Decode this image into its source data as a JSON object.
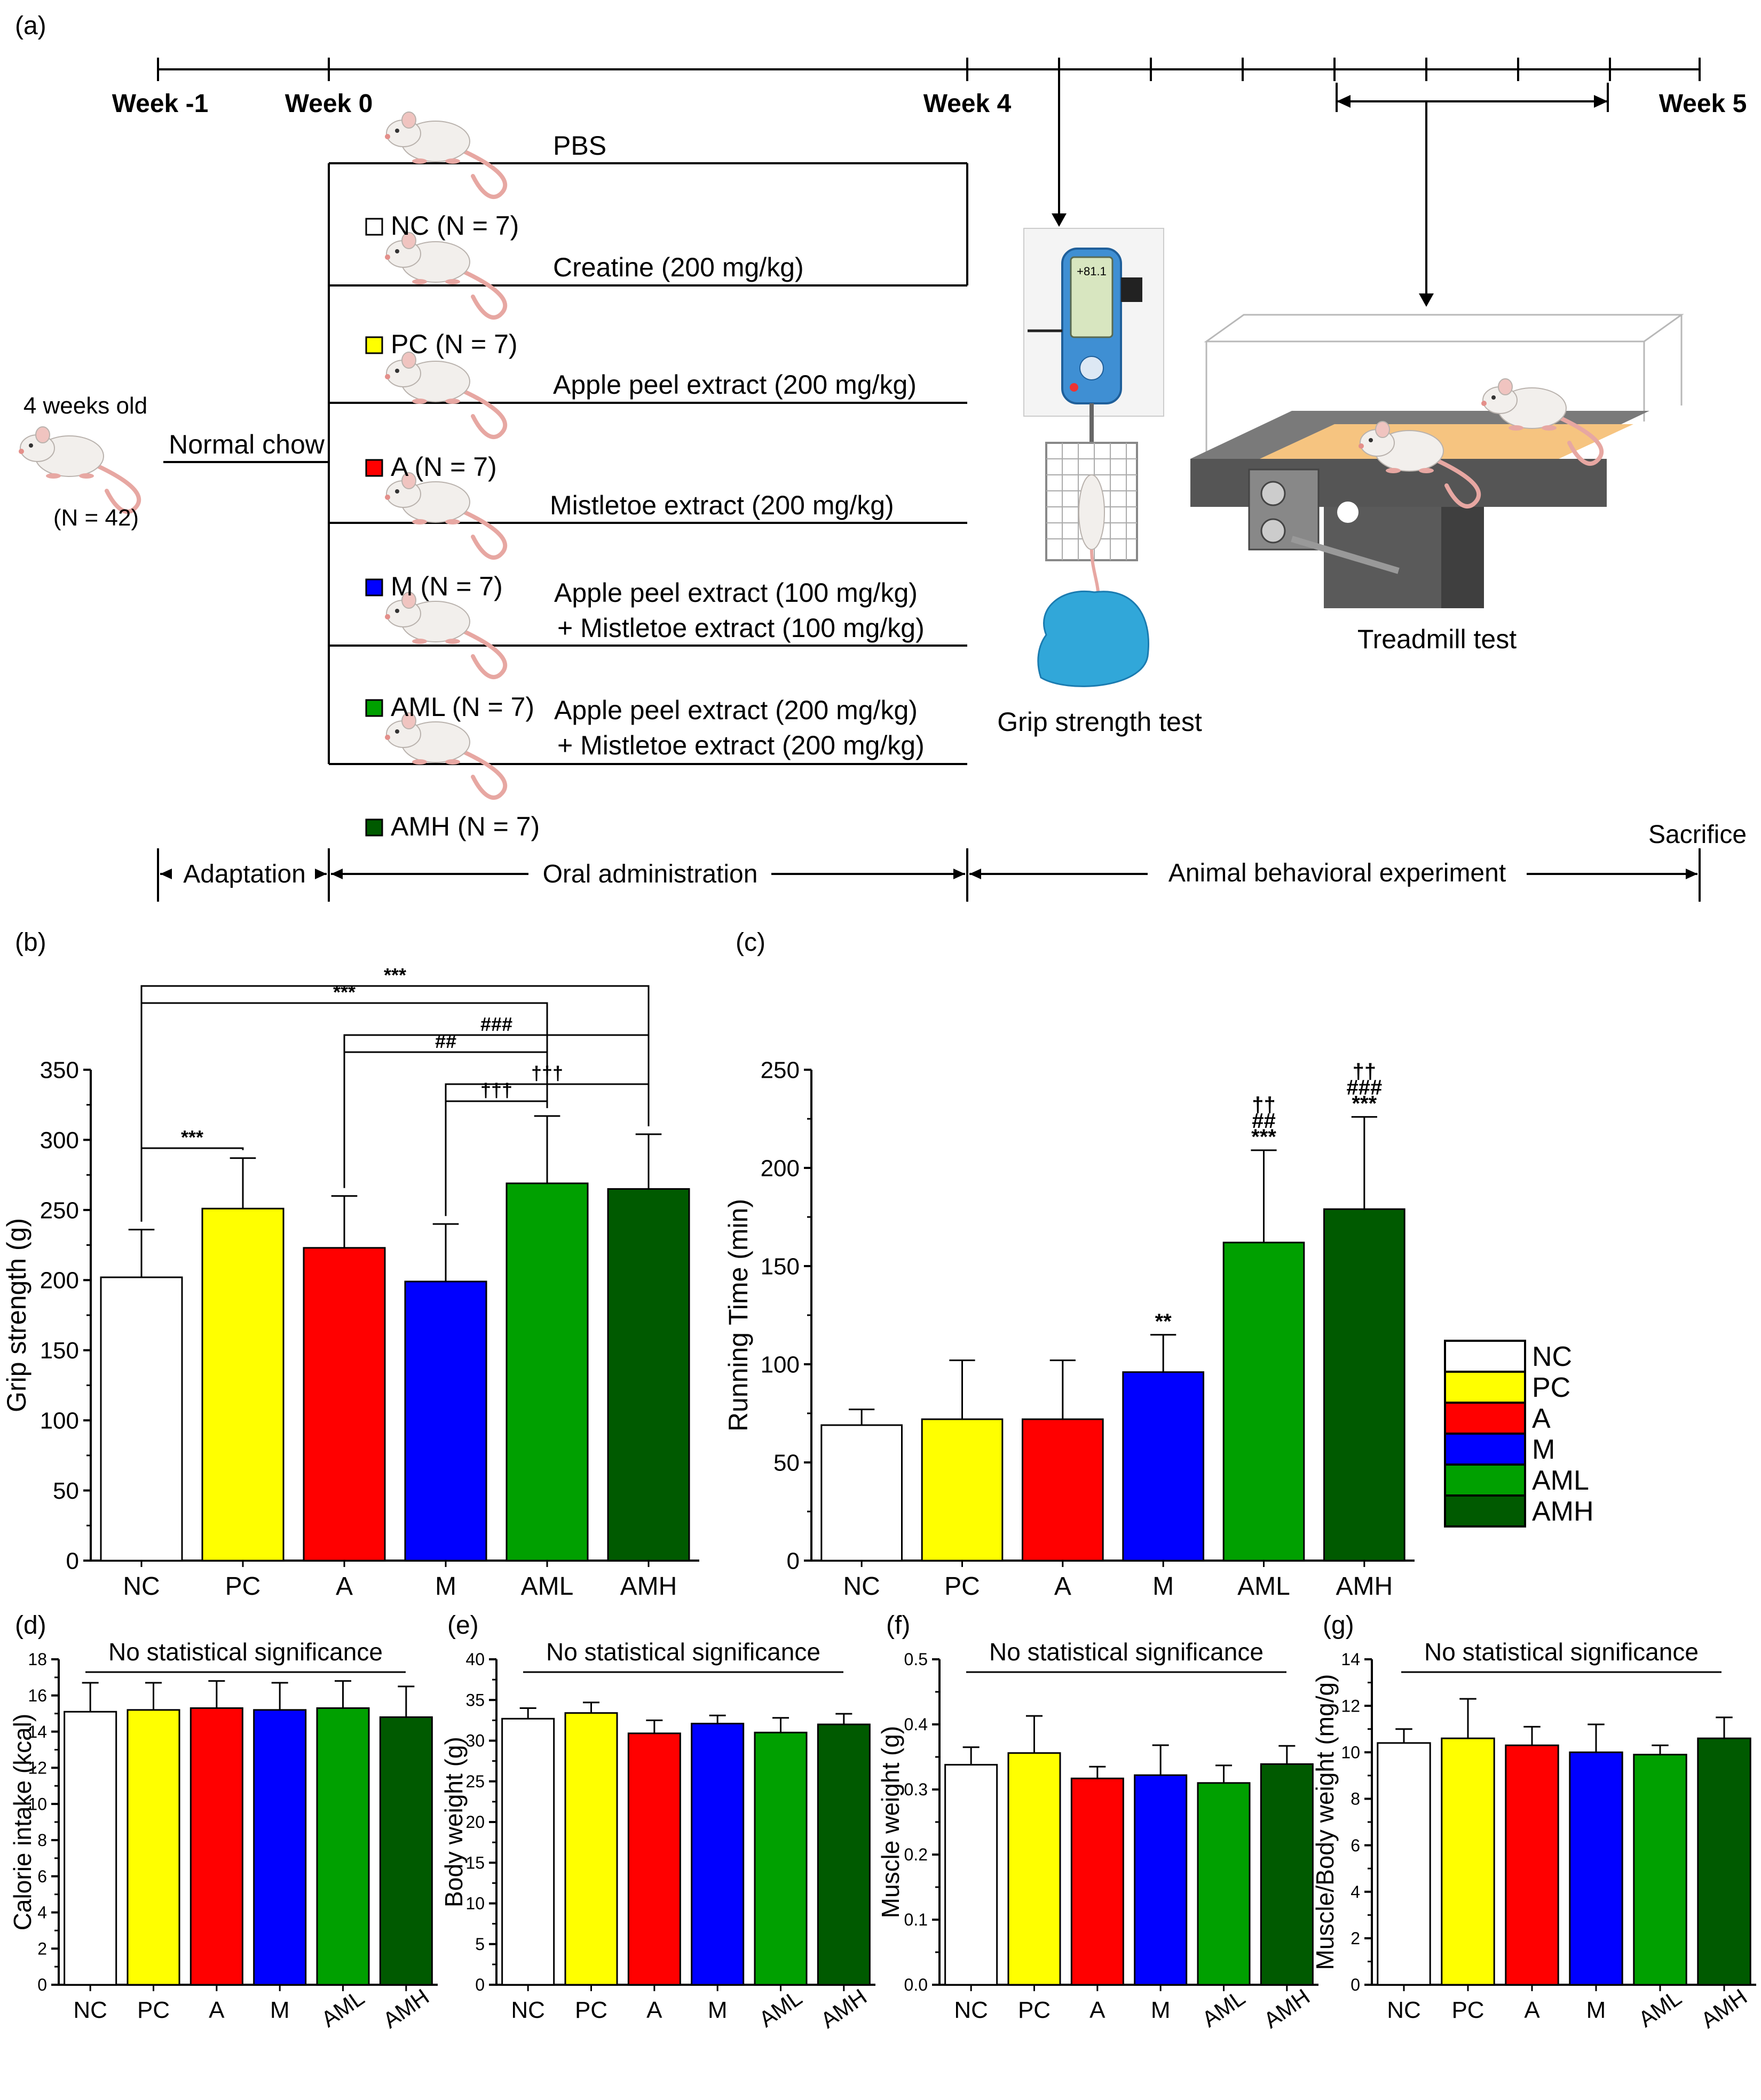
{
  "schematic": {
    "panel_label": "(a)",
    "weeks": [
      "Week -1",
      "Week 0",
      "Week 4",
      "Week 5"
    ],
    "start": {
      "age": "4 weeks old",
      "n": "(N = 42)",
      "diet": "Normal chow"
    },
    "groups": [
      {
        "label": "NC (N = 7)",
        "color": "#ffffff",
        "treatment": [
          "PBS"
        ]
      },
      {
        "label": "PC (N = 7)",
        "color": "#ffff00",
        "treatment": [
          "Creatine (200 mg/kg)"
        ]
      },
      {
        "label": "A (N = 7)",
        "color": "#ff0000",
        "treatment": [
          "Apple peel extract (200 mg/kg)"
        ]
      },
      {
        "label": "M (N = 7)",
        "color": "#0000ff",
        "treatment": [
          "Mistletoe extract (200 mg/kg)"
        ]
      },
      {
        "label": "AML (N = 7)",
        "color": "#00a000",
        "treatment": [
          "Apple peel extract (100 mg/kg)",
          "+ Mistletoe extract (100 mg/kg)"
        ]
      },
      {
        "label": "AMH (N = 7)",
        "color": "#005a00",
        "treatment": [
          "Apple peel extract (200 mg/kg)",
          "+ Mistletoe extract (200 mg/kg)"
        ]
      }
    ],
    "tests": {
      "grip": "Grip strength test",
      "treadmill": "Treadmill test",
      "display": "+81.1"
    },
    "phases": {
      "adaptation": "Adaptation",
      "oral": "Oral administration",
      "behavior": "Animal behavioral experiment",
      "end": "Sacrifice"
    }
  },
  "colors": {
    "NC": "#ffffff",
    "PC": "#ffff00",
    "A": "#ff0000",
    "M": "#0000ff",
    "AML": "#00a000",
    "AMH": "#005a00"
  },
  "legend": [
    "NC",
    "PC",
    "A",
    "M",
    "AML",
    "AMH"
  ],
  "chart_data": [
    {
      "id": "b",
      "panel_label": "(b)",
      "type": "bar",
      "categories": [
        "NC",
        "PC",
        "A",
        "M",
        "AML",
        "AMH"
      ],
      "values": [
        202,
        251,
        223,
        199,
        269,
        265
      ],
      "errors": [
        34,
        36,
        37,
        41,
        48,
        39
      ],
      "title": "",
      "xlabel": "",
      "ylabel": "Grip strength (g)",
      "ylim": [
        0,
        350
      ],
      "yticks": [
        0,
        50,
        100,
        150,
        200,
        250,
        300,
        350
      ],
      "brackets": [
        {
          "from": "NC",
          "to": "AMH",
          "label": "***"
        },
        {
          "from": "NC",
          "to": "AML",
          "label": "***"
        },
        {
          "from": "A",
          "to": "AMH",
          "label": "###"
        },
        {
          "from": "A",
          "to": "AML",
          "label": "##"
        },
        {
          "from": "M",
          "to": "AMH",
          "label": "†††"
        },
        {
          "from": "M",
          "to": "AML",
          "label": "†††"
        },
        {
          "from": "NC",
          "to": "PC",
          "label": "***"
        }
      ]
    },
    {
      "id": "c",
      "panel_label": "(c)",
      "type": "bar",
      "categories": [
        "NC",
        "PC",
        "A",
        "M",
        "AML",
        "AMH"
      ],
      "values": [
        69,
        72,
        72,
        96,
        162,
        179
      ],
      "errors": [
        8,
        30,
        30,
        19,
        47,
        47
      ],
      "title": "",
      "xlabel": "",
      "ylabel": "Running Time (min)",
      "ylim": [
        0,
        250
      ],
      "yticks": [
        0,
        50,
        100,
        150,
        200,
        250
      ],
      "annotations": [
        [],
        [],
        [],
        [
          "**"
        ],
        [
          "††",
          "##",
          "***"
        ],
        [
          "††",
          "###",
          "***"
        ]
      ]
    },
    {
      "id": "d",
      "panel_label": "(d)",
      "type": "bar",
      "title": "No statistical significance",
      "categories": [
        "NC",
        "PC",
        "A",
        "M",
        "AML",
        "AMH"
      ],
      "values": [
        15.1,
        15.2,
        15.3,
        15.2,
        15.3,
        14.8
      ],
      "errors": [
        1.6,
        1.5,
        1.5,
        1.5,
        1.5,
        1.7
      ],
      "xlabel": "",
      "ylabel": "Calorie intake (kcal)",
      "ylim": [
        0,
        18
      ],
      "yticks": [
        0,
        2,
        4,
        6,
        8,
        10,
        12,
        14,
        16,
        18
      ]
    },
    {
      "id": "e",
      "panel_label": "(e)",
      "type": "bar",
      "title": "No statistical significance",
      "categories": [
        "NC",
        "PC",
        "A",
        "M",
        "AML",
        "AMH"
      ],
      "values": [
        32.7,
        33.4,
        30.9,
        32.1,
        31.0,
        32.0
      ],
      "errors": [
        1.3,
        1.3,
        1.6,
        1.0,
        1.8,
        1.3
      ],
      "xlabel": "",
      "ylabel": "Body weight (g)",
      "ylim": [
        0,
        40
      ],
      "yticks": [
        0,
        5,
        10,
        15,
        20,
        25,
        30,
        35,
        40
      ]
    },
    {
      "id": "f",
      "panel_label": "(f)",
      "type": "bar",
      "title": "No statistical significance",
      "categories": [
        "NC",
        "PC",
        "A",
        "M",
        "AML",
        "AMH"
      ],
      "values": [
        0.338,
        0.356,
        0.317,
        0.322,
        0.31,
        0.339
      ],
      "errors": [
        0.027,
        0.057,
        0.018,
        0.046,
        0.027,
        0.028
      ],
      "xlabel": "",
      "ylabel": "Muscle weight (g)",
      "ylim": [
        0,
        0.5
      ],
      "yticks": [
        0.0,
        0.1,
        0.2,
        0.3,
        0.4,
        0.5
      ]
    },
    {
      "id": "g",
      "panel_label": "(g)",
      "type": "bar",
      "title": "No statistical significance",
      "categories": [
        "NC",
        "PC",
        "A",
        "M",
        "AML",
        "AMH"
      ],
      "values": [
        10.4,
        10.6,
        10.3,
        10.0,
        9.9,
        10.6
      ],
      "errors": [
        0.6,
        1.7,
        0.8,
        1.2,
        0.4,
        0.9
      ],
      "xlabel": "",
      "ylabel": "Muscle/Body weight (mg/g)",
      "ylim": [
        0,
        14
      ],
      "yticks": [
        0,
        2,
        4,
        6,
        8,
        10,
        12,
        14
      ]
    }
  ]
}
